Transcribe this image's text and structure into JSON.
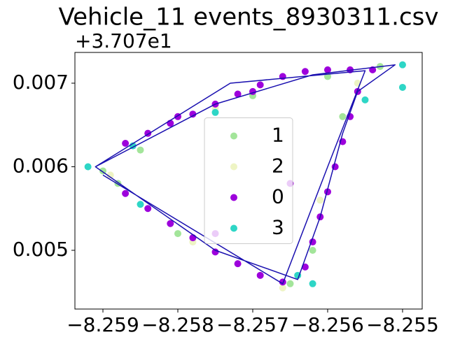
{
  "chart_data": {
    "type": "scatter",
    "title": "Vehicle_11 events_8930311.csv",
    "y_offset_label": "+3.707e1",
    "xlim": [
      -8.259374,
      -8.254738
    ],
    "ylim": [
      0.004297,
      0.007368
    ],
    "xticks": [
      {
        "value": -8.259,
        "label": "−8.259"
      },
      {
        "value": -8.258,
        "label": "−8.258"
      },
      {
        "value": -8.257,
        "label": "−8.257"
      },
      {
        "value": -8.256,
        "label": "−8.256"
      },
      {
        "value": -8.255,
        "label": "−8.255"
      }
    ],
    "yticks": [
      0.005,
      0.006,
      0.007
    ],
    "legend_position": "center",
    "series": [
      {
        "name": "1",
        "color": "#a3e59a",
        "x": [
          -8.259,
          -8.2585,
          -8.257,
          -8.256,
          -8.2553,
          -8.2558,
          -8.2562,
          -8.2565,
          -8.258,
          -8.2588
        ],
        "y": [
          0.00595,
          0.0062,
          0.00685,
          0.00708,
          0.0072,
          0.0066,
          0.005,
          0.0046,
          0.0052,
          0.0058
        ]
      },
      {
        "name": "2",
        "color": "#eef4c4",
        "x": [
          -8.2589,
          -8.2575,
          -8.2556,
          -8.2561,
          -8.2566,
          -8.2578
        ],
        "y": [
          0.0059,
          0.0067,
          0.007,
          0.0056,
          0.00455,
          0.0051
        ]
      },
      {
        "name": "0",
        "color": "#9d00dc",
        "x": [
          -8.2587,
          -8.2584,
          -8.2581,
          -8.2578,
          -8.2575,
          -8.2572,
          -8.2569,
          -8.2566,
          -8.2563,
          -8.256,
          -8.2557,
          -8.2554,
          -8.2556,
          -8.2557,
          -8.2558,
          -8.2559,
          -8.256,
          -8.2561,
          -8.2562,
          -8.2563,
          -8.2566,
          -8.2569,
          -8.2572,
          -8.2575,
          -8.2578,
          -8.2581,
          -8.2584,
          -8.2587,
          -8.258,
          -8.257,
          -8.2565,
          -8.2575
        ],
        "y": [
          0.00628,
          0.0064,
          0.00652,
          0.00663,
          0.00675,
          0.00687,
          0.00698,
          0.00708,
          0.00714,
          0.00716,
          0.00716,
          0.00716,
          0.0069,
          0.0066,
          0.0063,
          0.006,
          0.0057,
          0.0054,
          0.0051,
          0.0048,
          0.00462,
          0.0047,
          0.00484,
          0.00498,
          0.00515,
          0.00532,
          0.0055,
          0.00568,
          0.0066,
          0.0069,
          0.0058,
          0.0052
        ]
      },
      {
        "name": "3",
        "color": "#2ed6c6",
        "x": [
          -8.2592,
          -8.2585,
          -8.2575,
          -8.2564,
          -8.2562,
          -8.255,
          -8.255,
          -8.2555,
          -8.2586
        ],
        "y": [
          0.006,
          0.00555,
          0.00665,
          0.0047,
          0.0046,
          0.00722,
          0.00695,
          0.0068,
          0.00625
        ]
      }
    ],
    "track": {
      "color": "#1a10b0",
      "x": [
        -8.2591,
        -8.2575,
        -8.2562,
        -8.2551,
        -8.2556,
        -8.2558,
        -8.2561,
        -8.2564,
        -8.2575,
        -8.2591,
        -8.2573,
        -8.2555,
        -8.256,
        -8.2566,
        -8.259
      ],
      "y": [
        0.006,
        0.00675,
        0.0071,
        0.00722,
        0.0069,
        0.0064,
        0.0054,
        0.00465,
        0.005,
        0.006,
        0.007,
        0.00715,
        0.006,
        0.0046,
        0.0059
      ]
    }
  }
}
